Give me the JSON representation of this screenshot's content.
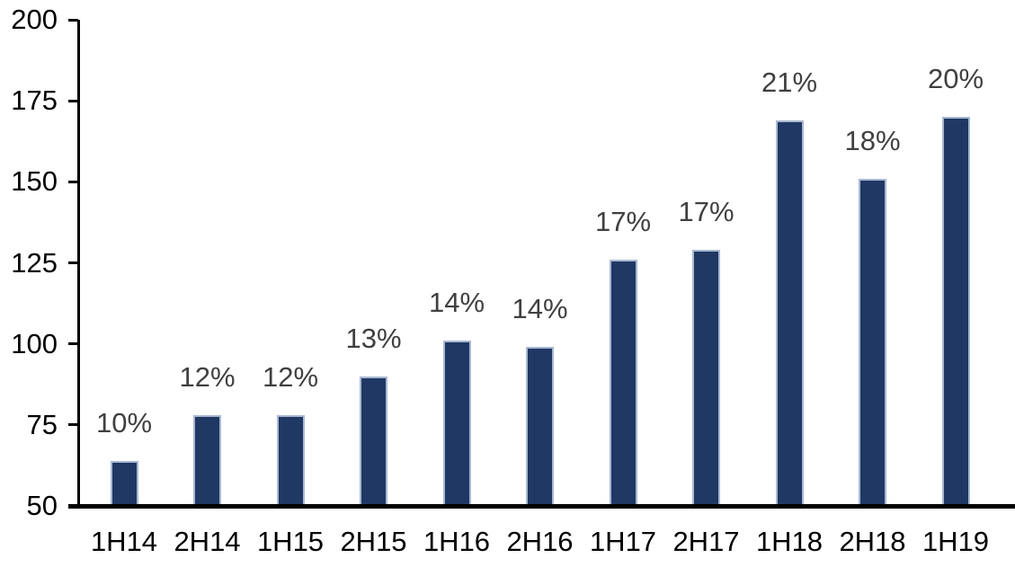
{
  "chart_data": {
    "type": "bar",
    "title": "",
    "xlabel": "",
    "ylabel": "",
    "categories": [
      "1H14",
      "2H14",
      "1H15",
      "2H15",
      "1H16",
      "2H16",
      "1H17",
      "2H17",
      "1H18",
      "2H18",
      "1H19"
    ],
    "values": [
      64,
      78,
      78,
      90,
      101,
      99,
      126,
      129,
      169,
      151,
      170
    ],
    "bar_labels": [
      "10%",
      "12%",
      "12%",
      "13%",
      "14%",
      "14%",
      "17%",
      "17%",
      "21%",
      "18%",
      "20%"
    ],
    "ylim": [
      50,
      200
    ],
    "yticks": [
      50,
      75,
      100,
      125,
      150,
      175,
      200
    ],
    "grid": false,
    "legend": false,
    "colors": {
      "bar_fill": "#1F3864",
      "bar_border": "#A9B8D1",
      "bar_label_text": "#404040",
      "axis_text": "#000000",
      "axis_line": "#000000",
      "background": "#FFFFFF"
    }
  }
}
